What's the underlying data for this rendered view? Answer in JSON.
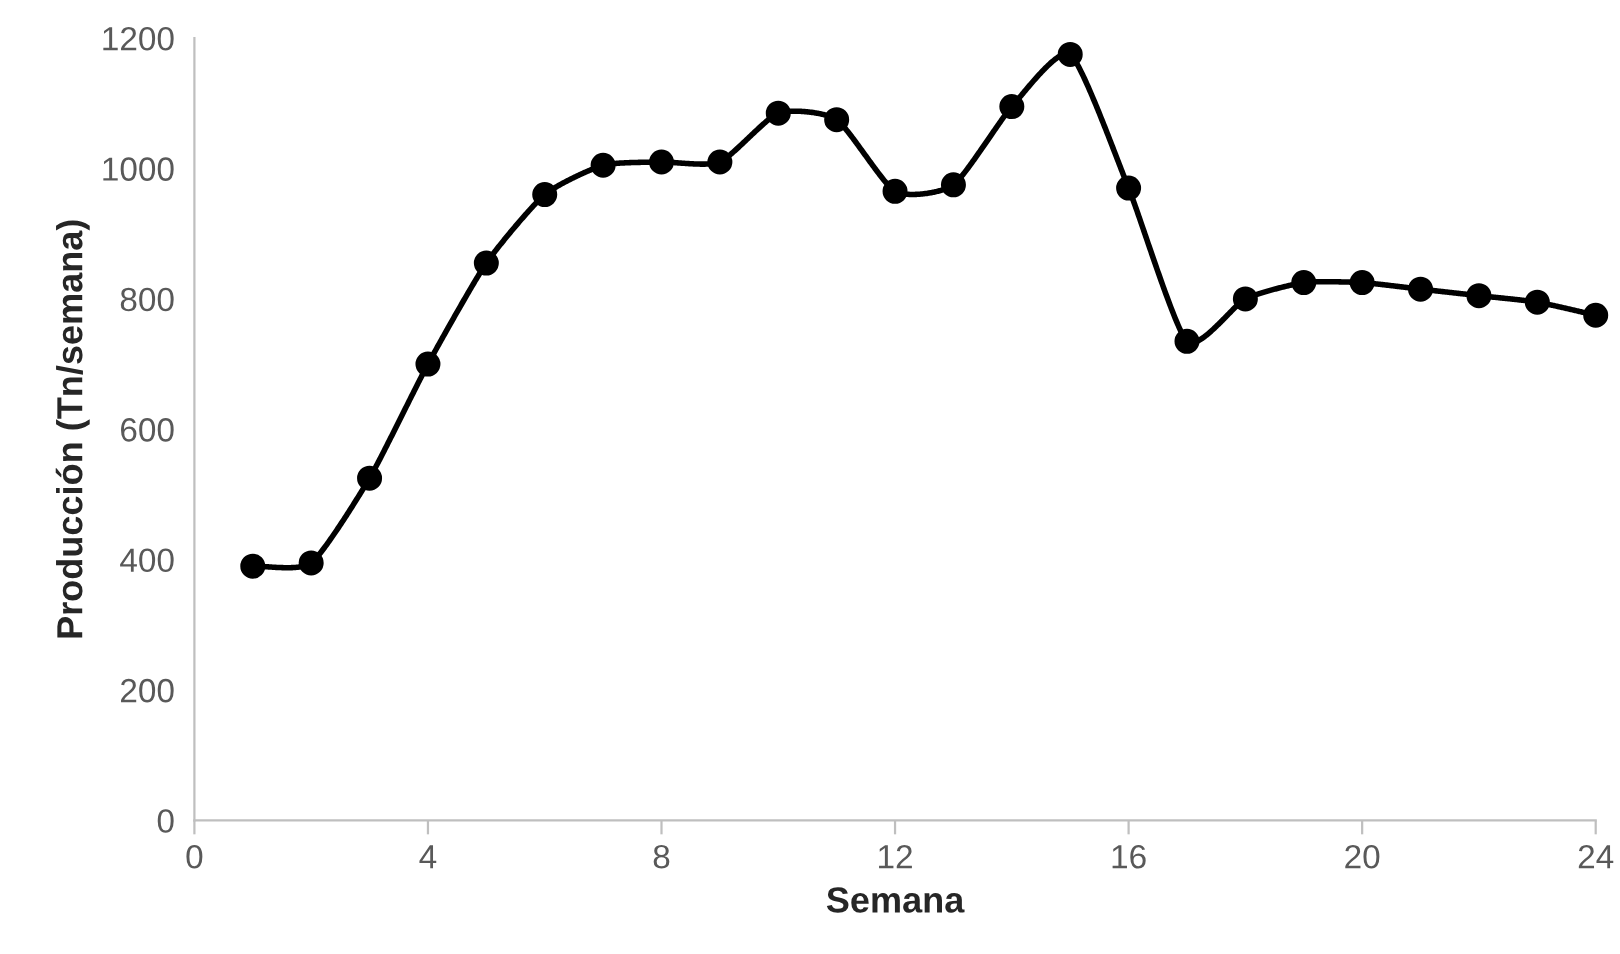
{
  "chart_data": {
    "type": "line",
    "xlabel": "Semana",
    "ylabel": "Producción (Tn/semana)",
    "x": [
      1,
      2,
      3,
      4,
      5,
      6,
      7,
      8,
      9,
      10,
      11,
      12,
      13,
      14,
      15,
      16,
      17,
      18,
      19,
      20,
      21,
      22,
      23,
      24
    ],
    "series": [
      {
        "color": "#000000",
        "values": [
          390,
          395,
          525,
          700,
          855,
          960,
          1005,
          1010,
          1010,
          1085,
          1075,
          965,
          975,
          1095,
          1175,
          970,
          735,
          800,
          825,
          825,
          815,
          805,
          795,
          775
        ]
      }
    ],
    "xlim": [
      0,
      24
    ],
    "xticks": [
      0,
      4,
      8,
      12,
      16,
      20,
      24
    ],
    "ylim": [
      0,
      1200
    ],
    "yticks": [
      0,
      200,
      400,
      600,
      800,
      1000,
      1200
    ],
    "grid": false,
    "marker": "circle",
    "line_style": "solid"
  }
}
